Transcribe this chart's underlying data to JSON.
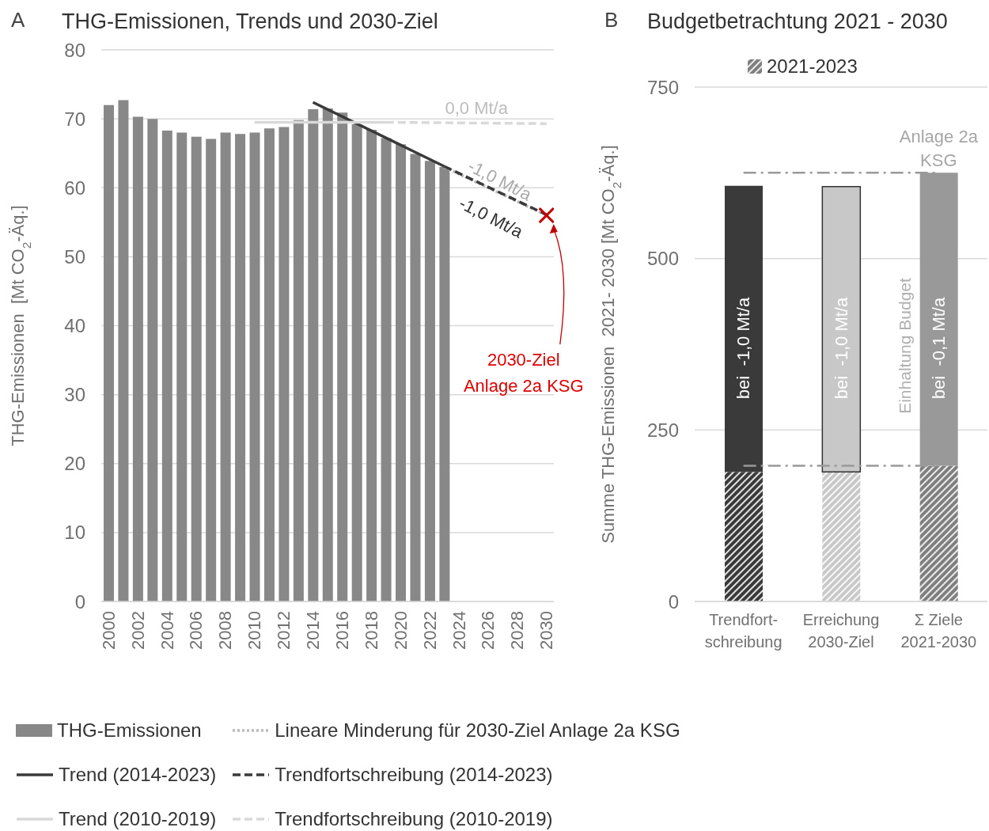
{
  "chart_data": [
    {
      "type": "bar",
      "title": "THG-Emissionen, Trends und 2030-Ziel",
      "ylabel": "THG-Emissionen  [Mt CO$_{2}$-Äq.]",
      "annotations": [
        "A",
        "0,0 Mt/a",
        "-1,0 Mt/a",
        "-1,0 Mt/a",
        "2030-Ziel\nAnlage 2a KSG"
      ],
      "x": [
        2000,
        2001,
        2002,
        2003,
        2004,
        2005,
        2006,
        2007,
        2008,
        2009,
        2010,
        2011,
        2012,
        2013,
        2014,
        2015,
        2016,
        2017,
        2018,
        2019,
        2020,
        2021,
        2022,
        2023
      ],
      "xlim": [
        1999.5,
        2030.5
      ],
      "xticks": [
        2000,
        2002,
        2004,
        2006,
        2008,
        2010,
        2012,
        2014,
        2016,
        2018,
        2020,
        2022,
        2024,
        2026,
        2028,
        2030
      ],
      "ylim": [
        0,
        80
      ],
      "yticks": [
        0,
        10,
        20,
        30,
        40,
        50,
        60,
        70,
        80
      ],
      "grid": "y",
      "legend": "bottom",
      "series": [
        {
          "name": "THG-Emissionen",
          "color": "#888888",
          "values": [
            72.0,
            72.7,
            70.3,
            70.0,
            68.3,
            68.0,
            67.4,
            67.1,
            68.0,
            67.8,
            68.0,
            68.6,
            68.8,
            69.8,
            71.4,
            71.5,
            70.9,
            69.2,
            68.4,
            67.2,
            66.3,
            64.9,
            63.9,
            63.0
          ]
        },
        {
          "name": "Trend (2014-2023)",
          "type": "line",
          "color": "#3a3a3a",
          "line_style": "solid",
          "x": [
            2014,
            2023
          ],
          "values": [
            72.4,
            63.1
          ]
        },
        {
          "name": "Trend (2010-2019)",
          "type": "line",
          "color": "#d9d9d9",
          "line_style": "solid",
          "x": [
            2010,
            2019
          ],
          "values": [
            69.5,
            69.5
          ]
        },
        {
          "name": "Lineare Minderung für 2030-Ziel Anlage 2a KSG",
          "type": "line",
          "color": "#bbbbbb",
          "line_style": "dotted",
          "x": [
            2023,
            2030
          ],
          "values": [
            63.0,
            56.0
          ]
        },
        {
          "name": "Trendfortschreibung (2014-2023)",
          "type": "line",
          "color": "#3a3a3a",
          "line_style": "dashed",
          "x": [
            2023,
            2030
          ],
          "values": [
            63.1,
            56.1
          ]
        },
        {
          "name": "Trendfortschreibung (2010-2019)",
          "type": "line",
          "color": "#d9d9d9",
          "line_style": "dashed",
          "x": [
            2019,
            2030
          ],
          "values": [
            69.5,
            69.3
          ]
        },
        {
          "type": "scatter",
          "color": "#c00000",
          "marker": "cross",
          "x": [
            2030
          ],
          "values": [
            56
          ]
        }
      ]
    },
    {
      "type": "bar",
      "stacked": true,
      "title": "Budgetbetrachtung 2021 - 2030",
      "ylabel": "Summe THG-Emissionen  2021- 2030 [Mt CO$_{2}$-Äq.]",
      "categories": [
        "Trendfort-\nschreibung",
        "Erreichung\n2030-Ziel",
        "Σ Ziele\n2021-2030"
      ],
      "ylim": [
        0,
        750
      ],
      "yticks": [
        0,
        250,
        500,
        750
      ],
      "grid": "y",
      "legend": "top",
      "series": [
        {
          "name": "2021-2023",
          "colors": [
            "#3a3a3a",
            "#c8c8c8",
            "#7f7f7f"
          ],
          "values": [
            189,
            189,
            198
          ]
        },
        {
          "colors": [
            "#3a3a3a",
            "#c8c8c8",
            "#999999"
          ],
          "values": [
            417,
            416,
            427
          ]
        }
      ],
      "ref_lines": [
        {
          "axis": "y",
          "value": 625,
          "label": "Anlage 2a\nKSG",
          "color": "#999999",
          "line_style": "dashdot"
        },
        {
          "axis": "y",
          "value": 198,
          "color": "#999999",
          "line_style": "dashdot"
        }
      ],
      "annotations": [
        "B",
        "Einhaltung Budget",
        "bei  -1,0 Mt/a",
        "bei  -1,0 Mt/a",
        "bei  -0,1 Mt/a"
      ]
    }
  ]
}
